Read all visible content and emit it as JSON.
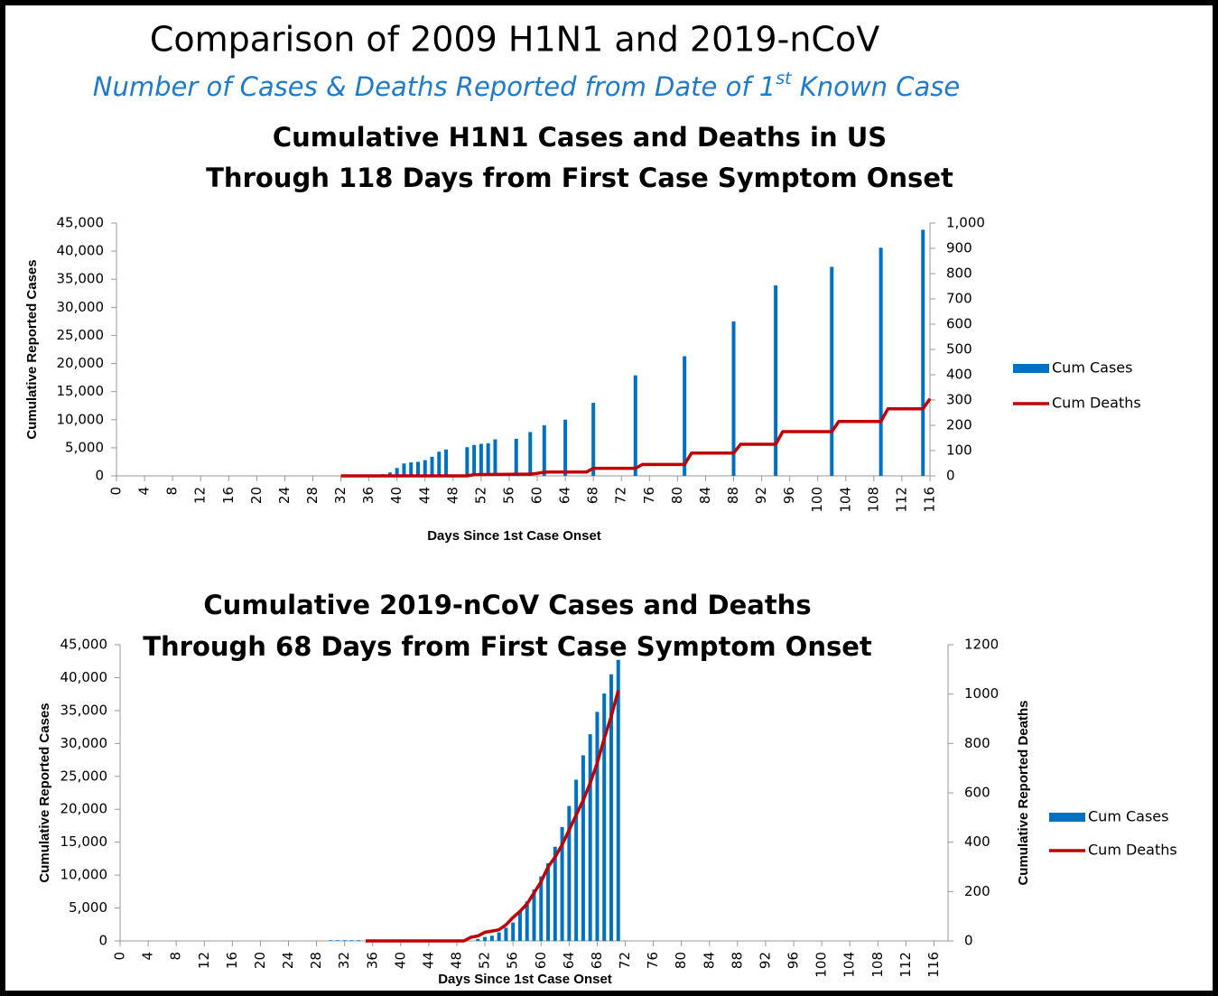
{
  "header": {
    "title": "Comparison of 2009 H1N1 and 2019-nCoV",
    "subtitle": {
      "before": "Number of Cases & Deaths Reported from Date of 1",
      "sup": "st",
      "after": " Known Case"
    }
  },
  "chart_data": [
    {
      "type": "combo",
      "title": [
        "Cumulative H1N1 Cases and Deaths in US",
        "Through 118 Days from First Case Symptom Onset"
      ],
      "x_label": "Days Since 1st Case Onset",
      "y_label": "Cumulative Reported Cases",
      "xlim": [
        0,
        116
      ],
      "xticks": [
        0,
        4,
        8,
        12,
        16,
        20,
        24,
        28,
        32,
        36,
        40,
        44,
        48,
        52,
        56,
        60,
        64,
        68,
        72,
        76,
        80,
        84,
        88,
        92,
        96,
        100,
        104,
        108,
        112,
        116
      ],
      "ylim": [
        0,
        45000
      ],
      "yticks": [
        0,
        {
          "value": 5000,
          "label": "5,000"
        },
        {
          "value": 10000,
          "label": "10,000"
        },
        {
          "value": 15000,
          "label": "15,000"
        },
        {
          "value": 20000,
          "label": "20,000"
        },
        {
          "value": 25000,
          "label": "25,000"
        },
        {
          "value": 30000,
          "label": "30,000"
        },
        {
          "value": 35000,
          "label": "35,000"
        },
        {
          "value": 40000,
          "label": "40,000"
        },
        {
          "value": 45000,
          "label": "45,000"
        }
      ],
      "y2lim": [
        0,
        1000
      ],
      "y2ticks": [
        0,
        100,
        200,
        300,
        400,
        500,
        600,
        700,
        800,
        900,
        {
          "value": 1000,
          "label": "1,000"
        }
      ],
      "series": [
        {
          "name": "Cum Cases",
          "type": "bar",
          "color": "#0070c0",
          "x": [
            38,
            39,
            40,
            41,
            42,
            43,
            44,
            45,
            46,
            47,
            50,
            51,
            52,
            53,
            54,
            57,
            59,
            61,
            64,
            68,
            74,
            81,
            88,
            94,
            102,
            109,
            115
          ],
          "values": [
            300,
            600,
            1400,
            2200,
            2400,
            2500,
            2800,
            3400,
            4300,
            4700,
            5100,
            5500,
            5700,
            5800,
            6500,
            6600,
            7800,
            9000,
            10000,
            13000,
            17900,
            21300,
            27500,
            33900,
            37200,
            40600,
            43800
          ]
        },
        {
          "name": "Cum Deaths",
          "type": "line",
          "axis": "y2",
          "color": "#c00000",
          "x": [
            32,
            50,
            51,
            59,
            60,
            61,
            67,
            68,
            74,
            75,
            81,
            82,
            88,
            89,
            94,
            95,
            102,
            103,
            109,
            110,
            115,
            116
          ],
          "values": [
            0,
            0,
            5,
            7,
            10,
            15,
            15,
            30,
            30,
            45,
            45,
            90,
            90,
            125,
            125,
            175,
            175,
            215,
            215,
            265,
            265,
            305
          ]
        }
      ]
    },
    {
      "type": "combo",
      "title": [
        "Cumulative 2019-nCoV Cases and Deaths",
        "Through 68 Days from First Case Symptom Onset"
      ],
      "x_label": "Days Since 1st Case Onset",
      "y_label": "Cumulative Reported Cases",
      "y2_label": "Cumulative Reported Deaths",
      "xlim": [
        0,
        118
      ],
      "xticks": [
        0,
        4,
        8,
        12,
        16,
        20,
        24,
        28,
        32,
        36,
        40,
        44,
        48,
        52,
        56,
        60,
        64,
        68,
        72,
        76,
        80,
        84,
        88,
        92,
        96,
        100,
        104,
        108,
        112,
        116
      ],
      "ylim": [
        0,
        45000
      ],
      "yticks": [
        0,
        {
          "value": 5000,
          "label": "5,000"
        },
        {
          "value": 10000,
          "label": "10,000"
        },
        {
          "value": 15000,
          "label": "15,000"
        },
        {
          "value": 20000,
          "label": "20,000"
        },
        {
          "value": 25000,
          "label": "25,000"
        },
        {
          "value": 30000,
          "label": "30,000"
        },
        {
          "value": 35000,
          "label": "35,000"
        },
        {
          "value": 40000,
          "label": "40,000"
        },
        {
          "value": 45000,
          "label": "45,000"
        }
      ],
      "y2lim": [
        0,
        1200
      ],
      "y2ticks": [
        0,
        200,
        400,
        600,
        800,
        1000,
        1200
      ],
      "series": [
        {
          "name": "Cum Cases",
          "type": "bar",
          "color": "#0070c0",
          "x": [
            30,
            31,
            32,
            33,
            34,
            51,
            52,
            53,
            54,
            55,
            56,
            57,
            58,
            59,
            60,
            61,
            62,
            63,
            64,
            65,
            66,
            67,
            68,
            69,
            70,
            71
          ],
          "values": [
            100,
            100,
            100,
            100,
            100,
            300,
            600,
            800,
            1300,
            2000,
            2800,
            4500,
            6000,
            7800,
            9800,
            11800,
            14300,
            17300,
            20500,
            24500,
            28200,
            31400,
            34800,
            37600,
            40500,
            42700
          ]
        },
        {
          "name": "Cum Deaths",
          "type": "line",
          "axis": "y2",
          "color": "#c00000",
          "x": [
            35,
            49,
            50,
            51,
            52,
            53,
            54,
            55,
            56,
            57,
            58,
            59,
            60,
            61,
            62,
            63,
            64,
            65,
            66,
            67,
            68,
            69,
            70,
            71
          ],
          "values": [
            0,
            0,
            15,
            20,
            35,
            40,
            45,
            65,
            95,
            120,
            150,
            195,
            240,
            300,
            340,
            390,
            450,
            510,
            570,
            640,
            720,
            820,
            910,
            1015
          ]
        }
      ]
    }
  ]
}
